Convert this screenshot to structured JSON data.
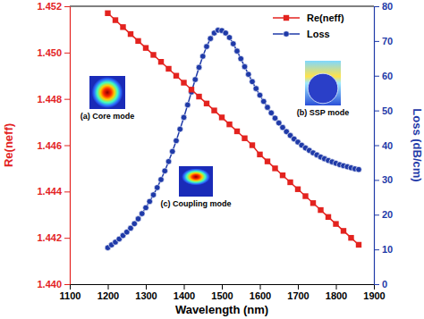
{
  "chart_data": {
    "type": "line",
    "x_label": "Wavelength (nm)",
    "y_label": "Re(neff)",
    "y2_label": "Loss (dB/cm)",
    "xlim": [
      1100,
      1900
    ],
    "xticks": [
      1100,
      1200,
      1300,
      1400,
      1500,
      1600,
      1700,
      1800,
      1900
    ],
    "ylim": [
      1.44,
      1.452
    ],
    "yticks": [
      {
        "value": 1.44,
        "label": "1.440"
      },
      {
        "value": 1.442,
        "label": "1.442"
      },
      {
        "value": 1.444,
        "label": "1.444"
      },
      {
        "value": 1.446,
        "label": "1.446"
      },
      {
        "value": 1.448,
        "label": "1.448"
      },
      {
        "value": 1.45,
        "label": "1.450"
      },
      {
        "value": 1.452,
        "label": "1.452"
      }
    ],
    "y2lim": [
      0,
      80
    ],
    "y2ticks": [
      0,
      10,
      20,
      30,
      40,
      50,
      60,
      70,
      80
    ],
    "legend": "upper right",
    "series": [
      {
        "name": "Re(neff)",
        "color": "#e3231f",
        "marker": "square",
        "x": [
          1200,
          1220,
          1240,
          1260,
          1280,
          1300,
          1320,
          1340,
          1360,
          1380,
          1400,
          1420,
          1440,
          1460,
          1480,
          1500,
          1520,
          1540,
          1560,
          1580,
          1600,
          1620,
          1640,
          1660,
          1680,
          1700,
          1720,
          1740,
          1760,
          1780,
          1800,
          1820,
          1840,
          1860
        ],
        "values": [
          1.4517,
          1.4514,
          1.4511,
          1.4508,
          1.4505,
          1.4502,
          1.4499,
          1.4496,
          1.4493,
          1.449,
          1.4487,
          1.4484,
          1.4481,
          1.4478,
          1.4475,
          1.4472,
          1.4469,
          1.4466,
          1.4463,
          1.446,
          1.4456,
          1.4453,
          1.445,
          1.4447,
          1.4444,
          1.4441,
          1.4438,
          1.4435,
          1.4432,
          1.4429,
          1.4426,
          1.4423,
          1.442,
          1.4417
        ]
      },
      {
        "name": "Loss",
        "color": "#1f3aa8",
        "marker": "circle",
        "axis": "y2",
        "x": [
          1200,
          1210,
          1220,
          1230,
          1240,
          1250,
          1260,
          1270,
          1280,
          1290,
          1300,
          1310,
          1320,
          1330,
          1340,
          1350,
          1360,
          1370,
          1380,
          1390,
          1400,
          1410,
          1420,
          1430,
          1440,
          1450,
          1460,
          1470,
          1480,
          1490,
          1500,
          1510,
          1520,
          1530,
          1540,
          1550,
          1560,
          1570,
          1580,
          1590,
          1600,
          1610,
          1620,
          1630,
          1640,
          1650,
          1660,
          1670,
          1680,
          1690,
          1700,
          1710,
          1720,
          1730,
          1740,
          1750,
          1760,
          1770,
          1780,
          1790,
          1800,
          1810,
          1820,
          1830,
          1840,
          1850,
          1860
        ],
        "values": [
          10.5,
          11.3,
          12.1,
          13.0,
          14.0,
          15.0,
          16.1,
          17.4,
          18.8,
          20.3,
          22.0,
          23.8,
          25.7,
          27.8,
          30.1,
          32.6,
          35.3,
          38.2,
          41.3,
          44.6,
          48.0,
          51.6,
          55.3,
          58.9,
          62.4,
          65.6,
          68.4,
          70.7,
          72.3,
          73.1,
          73.0,
          72.3,
          71.0,
          69.2,
          67.1,
          64.9,
          62.6,
          60.4,
          58.3,
          56.3,
          54.4,
          52.6,
          50.9,
          49.3,
          47.8,
          46.4,
          45.1,
          43.9,
          42.8,
          41.8,
          40.9,
          40.0,
          39.2,
          38.5,
          37.8,
          37.2,
          36.6,
          36.1,
          35.6,
          35.2,
          34.8,
          34.4,
          34.1,
          33.8,
          33.5,
          33.2,
          33.0
        ]
      }
    ],
    "annotations": [
      "(a) Core mode",
      "(b) SSP mode",
      "(c) Coupling mode"
    ]
  }
}
